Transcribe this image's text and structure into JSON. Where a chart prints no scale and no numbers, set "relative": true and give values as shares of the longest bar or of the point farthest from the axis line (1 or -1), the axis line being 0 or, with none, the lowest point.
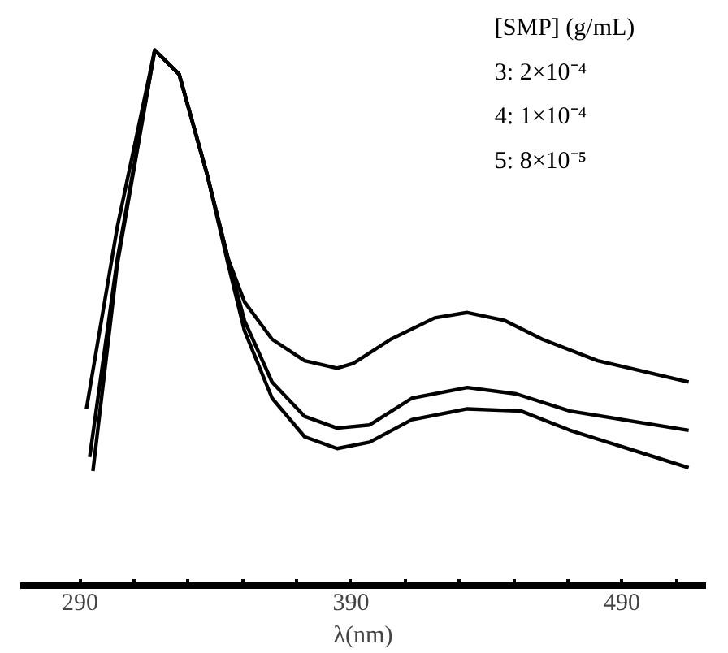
{
  "chart_data": {
    "type": "line",
    "relative": true,
    "xlabel": "λ(nm)",
    "xlim": [
      268,
      521
    ],
    "xticks": [
      290,
      {
        "value": 310,
        "label": null
      },
      {
        "value": 330,
        "label": null
      },
      {
        "value": 350,
        "label": null
      },
      {
        "value": 370,
        "label": null
      },
      390,
      {
        "value": 410,
        "label": null
      },
      {
        "value": 430,
        "label": null
      },
      {
        "value": 450,
        "label": null
      },
      {
        "value": 470,
        "label": null
      },
      490,
      {
        "value": 510,
        "label": null
      }
    ],
    "grid": false,
    "tick_labels": "x",
    "annotations": [
      "[SMP] (g/mL)",
      "3: 2×10⁻⁴",
      "4: 1×10⁻⁴",
      "5: 8×10⁻⁵"
    ],
    "series": [
      {
        "color": "#000000",
        "x": [
          292.4,
          303.8,
          317.6,
          326.6,
          336.8,
          344.7,
          350.7,
          360.9,
          372.9,
          384.9,
          390.9,
          404.7,
          420.9,
          432.9,
          446.8,
          460.6,
          481,
          514.6
        ],
        "values": [
          0.33,
          0.67,
          1.0,
          0.955,
          0.77,
          0.61,
          0.53,
          0.46,
          0.42,
          0.406,
          0.415,
          0.46,
          0.5,
          0.51,
          0.495,
          0.46,
          0.42,
          0.38
        ]
      },
      {
        "color": "#000000",
        "x": [
          293.6,
          303.8,
          317.6,
          326.6,
          336.8,
          344.7,
          350.7,
          360.9,
          372.9,
          384.9,
          396.9,
          412.5,
          432.9,
          451,
          470.8,
          514.6
        ],
        "values": [
          0.24,
          0.61,
          1.0,
          0.955,
          0.77,
          0.61,
          0.495,
          0.38,
          0.316,
          0.294,
          0.3,
          0.35,
          0.37,
          0.358,
          0.326,
          0.29
        ]
      },
      {
        "color": "#000000",
        "x": [
          294.8,
          303.8,
          317.6,
          326.6,
          336.8,
          344.7,
          350.7,
          360.9,
          372.9,
          384.9,
          396.9,
          412.5,
          432.9,
          452.8,
          470.8,
          514.6
        ],
        "values": [
          0.214,
          0.6,
          1.0,
          0.955,
          0.77,
          0.6,
          0.476,
          0.35,
          0.278,
          0.256,
          0.268,
          0.31,
          0.33,
          0.326,
          0.29,
          0.22
        ]
      }
    ]
  }
}
